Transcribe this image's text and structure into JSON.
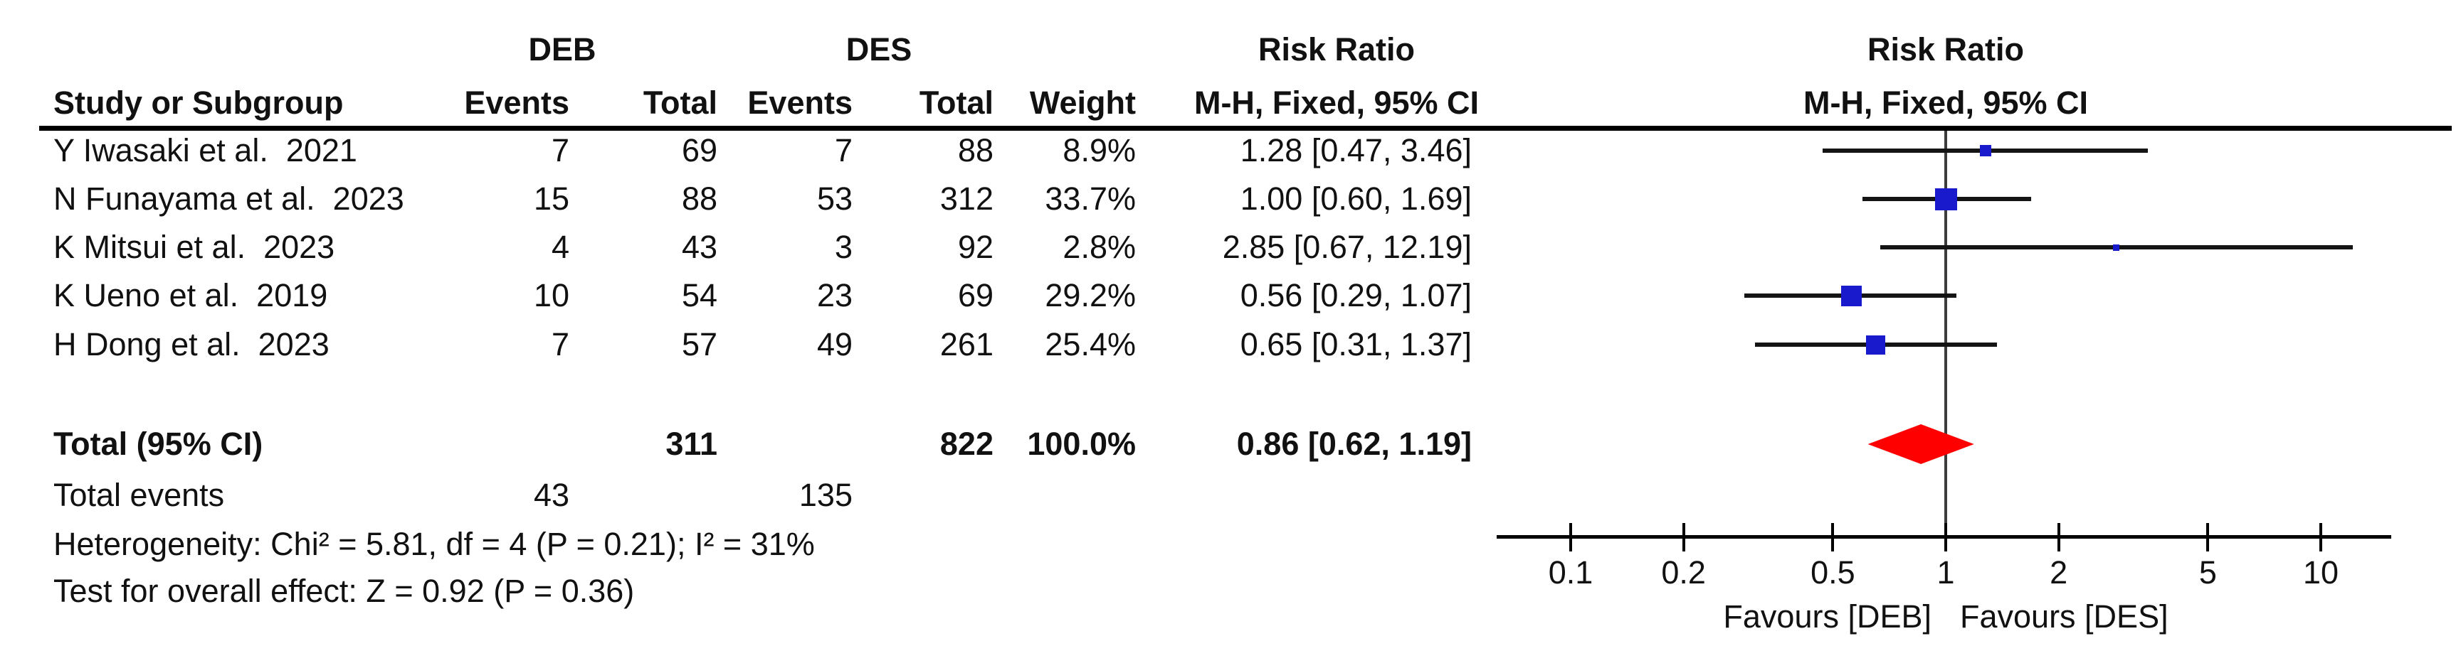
{
  "columns": {
    "study": "Study or Subgroup",
    "group1": "DEB",
    "group2": "DES",
    "events": "Events",
    "total": "Total",
    "weight": "Weight",
    "effect_line1": "Risk Ratio",
    "effect_line2": "M-H, Fixed, 95% CI"
  },
  "plot_header": {
    "line1": "Risk Ratio",
    "line2": "M-H, Fixed, 95% CI"
  },
  "chart_data": {
    "type": "forest",
    "effect_measure": "Risk Ratio",
    "method": "M-H, Fixed, 95% CI",
    "x_scale": "log",
    "x_ticks": [
      "0.1",
      "0.2",
      "0.5",
      "1",
      "2",
      "5",
      "10"
    ],
    "x_range": [
      0.065,
      15
    ],
    "null_value": 1,
    "favours_left": "Favours [DEB]",
    "favours_right": "Favours [DES]",
    "studies": [
      {
        "label": "Y Iwasaki et al.",
        "year": "2021",
        "deb_events": "7",
        "deb_total": "69",
        "des_events": "7",
        "des_total": "88",
        "weight": "8.9%",
        "weight_pct": 8.9,
        "rr": 1.28,
        "ci_low": 0.47,
        "ci_high": 3.46,
        "rr_text": "1.28 [0.47, 3.46]"
      },
      {
        "label": "N Funayama et al.",
        "year": "2023",
        "deb_events": "15",
        "deb_total": "88",
        "des_events": "53",
        "des_total": "312",
        "weight": "33.7%",
        "weight_pct": 33.7,
        "rr": 1.0,
        "ci_low": 0.6,
        "ci_high": 1.69,
        "rr_text": "1.00 [0.60, 1.69]"
      },
      {
        "label": "K Mitsui et al.",
        "year": "2023",
        "deb_events": "4",
        "deb_total": "43",
        "des_events": "3",
        "des_total": "92",
        "weight": "2.8%",
        "weight_pct": 2.8,
        "rr": 2.85,
        "ci_low": 0.67,
        "ci_high": 12.19,
        "rr_text": "2.85 [0.67, 12.19]"
      },
      {
        "label": "K Ueno et al.",
        "year": "2019",
        "deb_events": "10",
        "deb_total": "54",
        "des_events": "23",
        "des_total": "69",
        "weight": "29.2%",
        "weight_pct": 29.2,
        "rr": 0.56,
        "ci_low": 0.29,
        "ci_high": 1.07,
        "rr_text": "0.56 [0.29, 1.07]"
      },
      {
        "label": "H Dong et al.",
        "year": "2023",
        "deb_events": "7",
        "deb_total": "57",
        "des_events": "49",
        "des_total": "261",
        "weight": "25.4%",
        "weight_pct": 25.4,
        "rr": 0.65,
        "ci_low": 0.31,
        "ci_high": 1.37,
        "rr_text": "0.65 [0.31, 1.37]"
      }
    ],
    "total": {
      "label": "Total (95% CI)",
      "deb_total": "311",
      "des_total": "822",
      "weight": "100.0%",
      "rr": 0.86,
      "ci_low": 0.62,
      "ci_high": 1.19,
      "rr_text": "0.86 [0.62, 1.19]"
    },
    "total_events": {
      "label": "Total events",
      "deb": "43",
      "des": "135"
    },
    "heterogeneity": "Heterogeneity: Chi² = 5.81, df = 4 (P = 0.21); I² = 31%",
    "overall_effect": "Test for overall effect: Z = 0.92 (P = 0.36)",
    "colors": {
      "square": "#1a1acd",
      "diamond": "#fe0000",
      "ci_line": "#141414",
      "null_line": "#3d3d3d",
      "axis": "#000000"
    }
  }
}
